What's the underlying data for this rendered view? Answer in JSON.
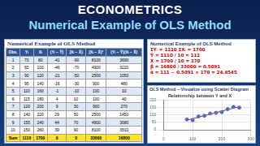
{
  "header": {
    "title": "ECONOMETRICS",
    "subtitle": "Numerical Example of OLS Method"
  },
  "table": {
    "title": "Numerical Example of OLS Method",
    "columns": [
      "Obs.",
      "Yᵢ",
      "Xᵢ",
      "(Yᵢ − Ȳ)",
      "(Xᵢ − X̄)",
      "(Xᵢ − X̄)²",
      "(Yᵢ − Ȳ)(Xᵢ − X̄)"
    ],
    "rows": [
      [
        1,
        70,
        80,
        -41,
        -90,
        8100,
        3690
      ],
      [
        2,
        65,
        100,
        -46,
        -70,
        4900,
        3220
      ],
      [
        3,
        90,
        120,
        -21,
        -50,
        2500,
        1050
      ],
      [
        4,
        95,
        140,
        -16,
        -30,
        900,
        480
      ],
      [
        5,
        110,
        160,
        -1,
        -10,
        100,
        10
      ],
      [
        6,
        115,
        180,
        4,
        10,
        100,
        40
      ],
      [
        7,
        120,
        200,
        9,
        30,
        900,
        270
      ],
      [
        8,
        140,
        220,
        29,
        50,
        2500,
        1450
      ],
      [
        9,
        155,
        240,
        44,
        70,
        4900,
        3080
      ],
      [
        10,
        150,
        260,
        39,
        90,
        8100,
        3510
      ]
    ],
    "sum": [
      "Sum",
      1110,
      1700,
      0,
      0,
      33000,
      16800
    ]
  },
  "formulas": {
    "title": "Numerical Example of OLS Method",
    "lines": [
      "ΣYᵢ = 1110    ΣXᵢ = 1700",
      "Ȳ = 1110 / 10 = 111",
      "X̄ = 1700 / 10 = 170",
      "β̂ = 16800 / 33000 = 0.5091",
      "α̂ = 111 − 0.5091 × 170 = 24.4545"
    ]
  },
  "chart_panel": {
    "title": "OLS Method – Visualize using Scatter Diagram"
  },
  "chart_data": {
    "type": "scatter",
    "title": "Relationship between Y and X",
    "x": [
      80,
      100,
      120,
      140,
      160,
      180,
      200,
      220,
      240,
      260
    ],
    "values": [
      70,
      65,
      90,
      95,
      110,
      115,
      120,
      140,
      155,
      150
    ],
    "color": "#4472c4",
    "marker": "circle",
    "fit_line": {
      "x": [
        80,
        260
      ],
      "values": [
        65.18,
        156.82
      ],
      "color": "#ff0000"
    },
    "xlim": [
      0,
      300
    ],
    "xticks": [
      0,
      100,
      200,
      300
    ],
    "ylim": [
      0,
      200
    ],
    "yticks": [
      0,
      50,
      100,
      150,
      200
    ],
    "grid": true
  }
}
